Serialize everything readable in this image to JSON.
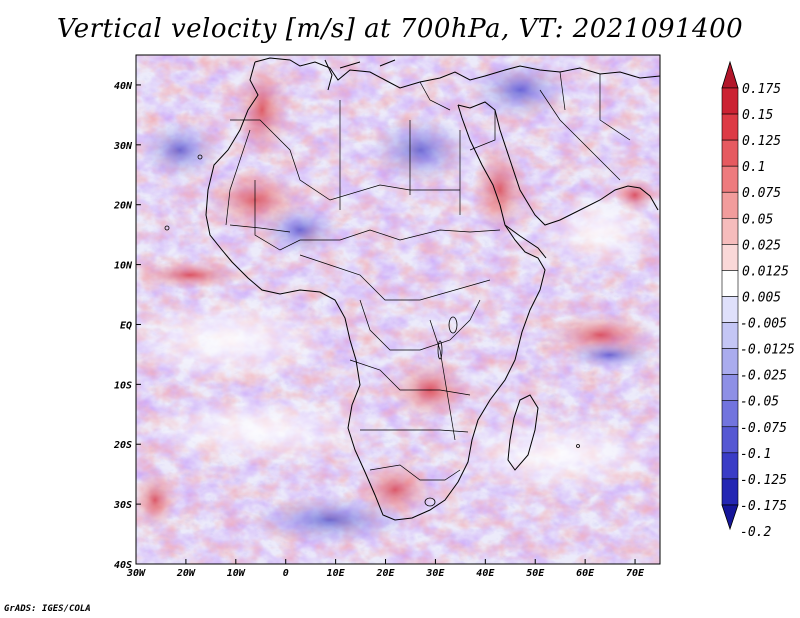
{
  "title": "Vertical velocity [m/s] at 700hPa, VT: 2021091400",
  "credit": "GrADS: IGES/COLA",
  "map": {
    "region": "Africa",
    "variable": "Vertical velocity",
    "units": "m/s",
    "level": "700hPa",
    "valid_time": "2021091400",
    "lon_range": [
      -30,
      75
    ],
    "lat_range": [
      -40,
      45
    ],
    "lon_ticks": [
      "30W",
      "20W",
      "10W",
      "0",
      "10E",
      "20E",
      "30E",
      "40E",
      "50E",
      "60E",
      "70E"
    ],
    "lat_ticks": [
      "40N",
      "30N",
      "20N",
      "10N",
      "EQ",
      "10S",
      "20S",
      "30S",
      "40S"
    ]
  },
  "colorbar": {
    "labels": [
      "0.175",
      "0.15",
      "0.125",
      "0.1",
      "0.075",
      "0.05",
      "0.025",
      "0.0125",
      "0.005",
      "-0.005",
      "-0.0125",
      "-0.025",
      "-0.05",
      "-0.075",
      "-0.1",
      "-0.125",
      "-0.175",
      "-0.2"
    ],
    "colors": [
      "#b2162a",
      "#cc2233",
      "#dd3a45",
      "#e65a60",
      "#ee7b7e",
      "#f29c9c",
      "#f6bcbc",
      "#fad8d8",
      "#ffffff",
      "#dfe0fb",
      "#c4c6f5",
      "#aaacee",
      "#8e90e6",
      "#7274de",
      "#5658d3",
      "#3a3cc6",
      "#2426b3",
      "#16169a"
    ]
  },
  "colors": {
    "background": "#ffffff",
    "field_base": "#eceafa",
    "coast": "#000000"
  }
}
